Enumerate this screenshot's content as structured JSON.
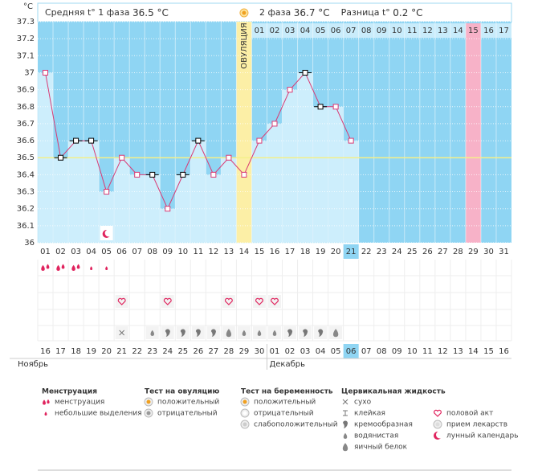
{
  "header": {
    "phase1_label": "Средняя t° 1 фаза",
    "phase1_value": "36.5 °C",
    "phase2_label": "2 фаза",
    "phase2_value": "36.7 °C",
    "diff_label": "Разница t°",
    "diff_value": "0.2 °C"
  },
  "chart_data": {
    "type": "line",
    "y_unit": "°C",
    "ylim": [
      36,
      37.3
    ],
    "yticks": [
      36,
      36.1,
      36.2,
      36.3,
      36.4,
      36.5,
      36.6,
      36.7,
      36.8,
      36.9,
      37,
      37.1,
      37.2,
      37.3
    ],
    "grid": true,
    "categories": [
      "01",
      "02",
      "03",
      "04",
      "05",
      "06",
      "07",
      "08",
      "09",
      "10",
      "11",
      "12",
      "13",
      "14",
      "15",
      "16",
      "17",
      "18",
      "19",
      "20",
      "21",
      "22",
      "23",
      "24",
      "25",
      "26",
      "27",
      "28",
      "29",
      "30",
      "31"
    ],
    "values": [
      37.0,
      36.5,
      36.6,
      36.6,
      36.3,
      36.5,
      36.4,
      36.4,
      36.2,
      36.4,
      36.6,
      36.4,
      36.5,
      36.4,
      36.6,
      36.7,
      36.9,
      37.0,
      36.8,
      36.8,
      36.6,
      null,
      null,
      null,
      null,
      null,
      null,
      null,
      null,
      null,
      null
    ],
    "color": "#d93a74",
    "point_colors": [
      "#d93a74",
      "#000000",
      "#000000",
      "#000000",
      "#d93a74",
      "#d93a74",
      "#d93a74",
      "#000000",
      "#d93a74",
      "#000000",
      "#000000",
      "#d93a74",
      "#d93a74",
      "#d93a74",
      "#d93a74",
      "#d93a74",
      "#d93a74",
      "#000000",
      "#000000",
      "#d93a74",
      "#d93a74"
    ],
    "cover_line": 36.5,
    "ovulation_day": "14",
    "ovulation_label": "ОВУЛЯЦИЯ",
    "marked_day": "29",
    "today": "21",
    "phase2_days": [
      "01",
      "02",
      "03",
      "04",
      "05",
      "06",
      "07",
      "08",
      "09",
      "10",
      "11",
      "12",
      "13",
      "14",
      "15",
      "16",
      "17"
    ],
    "dates": [
      {
        "label": "16"
      },
      {
        "label": "17"
      },
      {
        "label": "18"
      },
      {
        "label": "19",
        "weekend": true
      },
      {
        "label": "20",
        "weekend": true
      },
      {
        "label": "21"
      },
      {
        "label": "22"
      },
      {
        "label": "23"
      },
      {
        "label": "24"
      },
      {
        "label": "25"
      },
      {
        "label": "26",
        "weekend": true
      },
      {
        "label": "27",
        "weekend": true
      },
      {
        "label": "28"
      },
      {
        "label": "29"
      },
      {
        "label": "30"
      },
      {
        "label": "01"
      },
      {
        "label": "02"
      },
      {
        "label": "03",
        "weekend": true
      },
      {
        "label": "04",
        "weekend": true
      },
      {
        "label": "05"
      },
      {
        "label": "06"
      },
      {
        "label": "07"
      },
      {
        "label": "08"
      },
      {
        "label": "09"
      },
      {
        "label": "10",
        "weekend": true
      },
      {
        "label": "11",
        "weekend": true
      },
      {
        "label": "12"
      },
      {
        "label": "13"
      },
      {
        "label": "14"
      },
      {
        "label": "15"
      },
      {
        "label": "16"
      }
    ],
    "weekend_color": "#e0245e",
    "months": [
      "Ноябрь",
      "Декабрь"
    ],
    "menstruation": [
      0,
      0,
      0,
      1,
      1,
      null,
      null,
      null,
      null,
      null,
      null,
      null,
      null,
      null,
      null,
      null,
      null,
      null,
      null,
      null,
      null,
      null,
      null,
      null,
      null,
      null,
      null,
      null,
      null,
      null,
      null
    ],
    "intercourse_days": [
      "06",
      "09",
      "13",
      "15",
      "16"
    ],
    "lunar_days": [
      "05"
    ],
    "fluid": [
      null,
      null,
      null,
      null,
      null,
      0,
      null,
      3,
      2,
      2,
      2,
      2,
      4,
      3,
      3,
      3,
      2,
      2,
      2,
      4,
      null,
      null,
      null,
      null,
      null,
      null,
      null,
      null,
      null,
      null,
      null
    ]
  },
  "legend": [
    {
      "title": "Менструация",
      "items": [
        "менструация",
        "небольшие выделения"
      ]
    },
    {
      "title": "Тест на овуляцию",
      "items": [
        "положительный",
        "отрицательный"
      ]
    },
    {
      "title": "Тест на беременность",
      "items": [
        "положительный",
        "отрицательный",
        "слабоположительный"
      ]
    },
    {
      "title": "Цервикальная жидкость",
      "items": [
        "сухо",
        "клейкая",
        "кремообразная",
        "водянистая",
        "яичный белок"
      ]
    },
    {
      "items": [
        "половой акт",
        "прием лекарств",
        "лунный календарь"
      ]
    }
  ]
}
